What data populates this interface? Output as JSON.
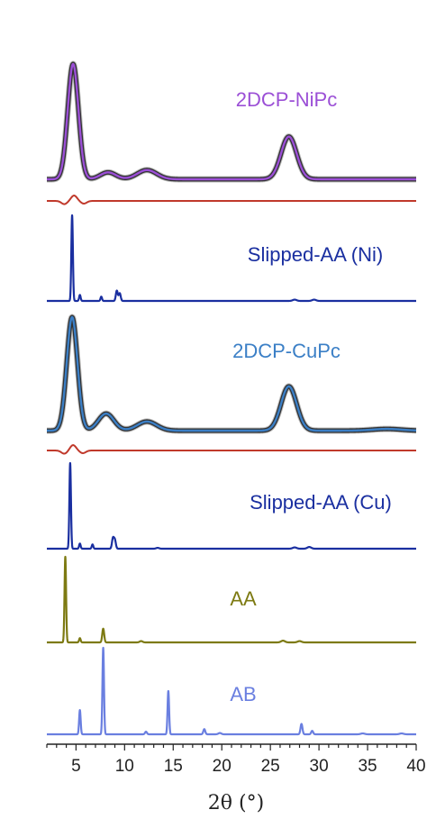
{
  "chart_data": {
    "type": "line",
    "xlabel": "2θ (°)",
    "xlim": [
      2,
      40
    ],
    "x_ticks": [
      5,
      10,
      15,
      20,
      25,
      30,
      35,
      40
    ],
    "grid": false,
    "legend": "none",
    "panels": [
      {
        "label": "2DCP-NiPc",
        "color": "#9b4fd6",
        "style": "fit",
        "baseline_y": 199,
        "height": 128,
        "background": 0.0,
        "peaks": [
          {
            "x": 4.7,
            "h": 1.0,
            "w": 0.55
          },
          {
            "x": 8.3,
            "h": 0.06,
            "w": 0.8
          },
          {
            "x": 12.3,
            "h": 0.08,
            "w": 1.0
          },
          {
            "x": 26.9,
            "h": 0.37,
            "w": 0.8
          }
        ]
      },
      {
        "label": "",
        "color": "#c0392b",
        "style": "residual",
        "baseline_y": 223,
        "height": 6,
        "peaks": [
          {
            "x": 3.8,
            "h": -0.6,
            "w": 0.3
          },
          {
            "x": 4.8,
            "h": 1.0,
            "w": 0.3
          },
          {
            "x": 5.8,
            "h": -0.5,
            "w": 0.3
          }
        ]
      },
      {
        "label": "Slipped-AA (Ni)",
        "color": "#1a2fa0",
        "style": "sticks",
        "baseline_y": 334,
        "height": 95,
        "peaks": [
          {
            "x": 4.6,
            "h": 1.0,
            "w": 0.08
          },
          {
            "x": 5.4,
            "h": 0.07,
            "w": 0.08
          },
          {
            "x": 7.6,
            "h": 0.05,
            "w": 0.08
          },
          {
            "x": 9.2,
            "h": 0.12,
            "w": 0.1
          },
          {
            "x": 9.5,
            "h": 0.09,
            "w": 0.1
          },
          {
            "x": 27.5,
            "h": 0.015,
            "w": 0.2
          },
          {
            "x": 29.5,
            "h": 0.015,
            "w": 0.2
          }
        ]
      },
      {
        "label": "2DCP-CuPc",
        "color": "#3b7fc6",
        "style": "fit",
        "baseline_y": 478,
        "height": 126,
        "peaks": [
          {
            "x": 4.6,
            "h": 1.0,
            "w": 0.55
          },
          {
            "x": 8.1,
            "h": 0.15,
            "w": 0.8
          },
          {
            "x": 12.3,
            "h": 0.08,
            "w": 1.0
          },
          {
            "x": 26.9,
            "h": 0.39,
            "w": 0.8
          },
          {
            "x": 37.0,
            "h": 0.015,
            "w": 1.5
          }
        ]
      },
      {
        "label": "",
        "color": "#c0392b",
        "style": "residual",
        "baseline_y": 500,
        "height": 6,
        "peaks": [
          {
            "x": 3.8,
            "h": -0.6,
            "w": 0.3
          },
          {
            "x": 4.7,
            "h": 1.0,
            "w": 0.3
          },
          {
            "x": 5.7,
            "h": -0.5,
            "w": 0.3
          }
        ]
      },
      {
        "label": "Slipped-AA (Cu)",
        "color": "#1a2fa0",
        "style": "sticks",
        "baseline_y": 609,
        "height": 95,
        "peaks": [
          {
            "x": 4.4,
            "h": 1.0,
            "w": 0.08
          },
          {
            "x": 5.4,
            "h": 0.06,
            "w": 0.08
          },
          {
            "x": 6.7,
            "h": 0.05,
            "w": 0.08
          },
          {
            "x": 8.8,
            "h": 0.12,
            "w": 0.1
          },
          {
            "x": 9.0,
            "h": 0.1,
            "w": 0.1
          },
          {
            "x": 13.4,
            "h": 0.01,
            "w": 0.15
          },
          {
            "x": 27.5,
            "h": 0.015,
            "w": 0.2
          },
          {
            "x": 29.0,
            "h": 0.02,
            "w": 0.2
          }
        ]
      },
      {
        "label": "AA",
        "color": "#7d7a12",
        "style": "sticks",
        "baseline_y": 713,
        "height": 95,
        "peaks": [
          {
            "x": 3.9,
            "h": 1.0,
            "w": 0.08
          },
          {
            "x": 5.4,
            "h": 0.05,
            "w": 0.08
          },
          {
            "x": 7.8,
            "h": 0.16,
            "w": 0.1
          },
          {
            "x": 11.7,
            "h": 0.015,
            "w": 0.15
          },
          {
            "x": 26.3,
            "h": 0.02,
            "w": 0.2
          },
          {
            "x": 28.0,
            "h": 0.015,
            "w": 0.2
          }
        ]
      },
      {
        "label": "AB",
        "color": "#6a7fe0",
        "style": "sticks",
        "baseline_y": 815,
        "height": 96,
        "peaks": [
          {
            "x": 5.4,
            "h": 0.28,
            "w": 0.08
          },
          {
            "x": 7.8,
            "h": 1.0,
            "w": 0.08
          },
          {
            "x": 12.2,
            "h": 0.03,
            "w": 0.1
          },
          {
            "x": 14.5,
            "h": 0.5,
            "w": 0.08
          },
          {
            "x": 18.2,
            "h": 0.06,
            "w": 0.1
          },
          {
            "x": 19.8,
            "h": 0.015,
            "w": 0.15
          },
          {
            "x": 28.2,
            "h": 0.12,
            "w": 0.1
          },
          {
            "x": 29.3,
            "h": 0.04,
            "w": 0.1
          },
          {
            "x": 34.5,
            "h": 0.01,
            "w": 0.2
          },
          {
            "x": 38.5,
            "h": 0.01,
            "w": 0.2
          }
        ]
      }
    ]
  }
}
